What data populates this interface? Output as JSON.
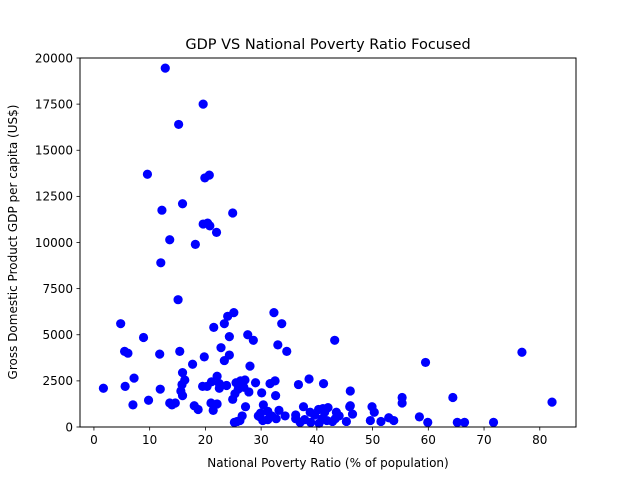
{
  "chart_data": {
    "type": "scatter",
    "title": "GDP VS National Poverty Ratio Focused",
    "xlabel": "National Poverty Ratio (% of population)",
    "ylabel": "Gross Domestic Product GDP per capita (US$)",
    "xlim": [
      -2.5,
      86.5
    ],
    "ylim": [
      0,
      20000
    ],
    "xticks": [
      0,
      10,
      20,
      30,
      40,
      50,
      60,
      70,
      80
    ],
    "yticks": [
      0,
      2500,
      5000,
      7500,
      10000,
      12500,
      15000,
      17500,
      20000
    ],
    "grid": false,
    "legend": "none",
    "marker_color": "#0000ff",
    "series": [
      {
        "points": [
          [
            12.8,
            19450
          ],
          [
            19.6,
            17500
          ],
          [
            15.2,
            16400
          ],
          [
            9.6,
            13700
          ],
          [
            20.7,
            13650
          ],
          [
            19.9,
            13500
          ],
          [
            15.9,
            12100
          ],
          [
            12.2,
            11750
          ],
          [
            24.9,
            11600
          ],
          [
            19.6,
            11000
          ],
          [
            20.4,
            11050
          ],
          [
            20.8,
            10900
          ],
          [
            13.6,
            10150
          ],
          [
            22.0,
            10550
          ],
          [
            18.2,
            9900
          ],
          [
            12.0,
            8900
          ],
          [
            15.1,
            6900
          ],
          [
            4.8,
            5600
          ],
          [
            25.1,
            6200
          ],
          [
            32.3,
            6200
          ],
          [
            24.0,
            6000
          ],
          [
            23.4,
            5600
          ],
          [
            33.7,
            5600
          ],
          [
            21.5,
            5400
          ],
          [
            27.6,
            5000
          ],
          [
            24.3,
            4900
          ],
          [
            28.6,
            4700
          ],
          [
            8.9,
            4850
          ],
          [
            43.2,
            4700
          ],
          [
            33.0,
            4450
          ],
          [
            22.8,
            4300
          ],
          [
            34.6,
            4100
          ],
          [
            76.8,
            4050
          ],
          [
            5.5,
            4100
          ],
          [
            6.1,
            4000
          ],
          [
            11.8,
            3950
          ],
          [
            15.4,
            4100
          ],
          [
            24.3,
            3900
          ],
          [
            19.8,
            3800
          ],
          [
            23.4,
            3600
          ],
          [
            59.5,
            3500
          ],
          [
            17.7,
            3400
          ],
          [
            28.0,
            3300
          ],
          [
            15.9,
            2950
          ],
          [
            22.1,
            2750
          ],
          [
            27.1,
            2550
          ],
          [
            16.3,
            2550
          ],
          [
            26.3,
            2500
          ],
          [
            38.6,
            2600
          ],
          [
            7.2,
            2650
          ],
          [
            32.5,
            2500
          ],
          [
            21.1,
            2450
          ],
          [
            25.5,
            2400
          ],
          [
            29.0,
            2400
          ],
          [
            19.5,
            2200
          ],
          [
            22.5,
            2350
          ],
          [
            36.7,
            2300
          ],
          [
            31.6,
            2350
          ],
          [
            23.8,
            2250
          ],
          [
            15.8,
            2300
          ],
          [
            41.2,
            2350
          ],
          [
            5.6,
            2200
          ],
          [
            20.3,
            2200
          ],
          [
            26.9,
            2150
          ],
          [
            1.7,
            2100
          ],
          [
            11.9,
            2050
          ],
          [
            25.9,
            2050
          ],
          [
            15.6,
            1950
          ],
          [
            22.5,
            2100
          ],
          [
            46.0,
            1950
          ],
          [
            27.8,
            1900
          ],
          [
            30.1,
            1850
          ],
          [
            25.3,
            1800
          ],
          [
            32.6,
            1700
          ],
          [
            15.9,
            1700
          ],
          [
            55.3,
            1600
          ],
          [
            64.4,
            1600
          ],
          [
            24.9,
            1500
          ],
          [
            9.8,
            1450
          ],
          [
            82.2,
            1350
          ],
          [
            13.6,
            1300
          ],
          [
            14.6,
            1300
          ],
          [
            21.0,
            1300
          ],
          [
            14.0,
            1200
          ],
          [
            7.0,
            1200
          ],
          [
            22.1,
            1250
          ],
          [
            30.4,
            1200
          ],
          [
            55.3,
            1300
          ],
          [
            46.0,
            1150
          ],
          [
            18.0,
            1150
          ],
          [
            37.6,
            1100
          ],
          [
            27.2,
            1100
          ],
          [
            18.7,
            950
          ],
          [
            42.0,
            1050
          ],
          [
            21.4,
            900
          ],
          [
            33.2,
            900
          ],
          [
            41.1,
            1000
          ],
          [
            40.3,
            950
          ],
          [
            49.9,
            1100
          ],
          [
            45.9,
            1100
          ],
          [
            31.2,
            850
          ],
          [
            29.9,
            750
          ],
          [
            38.8,
            800
          ],
          [
            41.4,
            800
          ],
          [
            43.5,
            800
          ],
          [
            50.3,
            800
          ],
          [
            46.4,
            700
          ],
          [
            36.2,
            650
          ],
          [
            29.5,
            600
          ],
          [
            31.9,
            600
          ],
          [
            34.3,
            600
          ],
          [
            26.6,
            600
          ],
          [
            39.6,
            650
          ],
          [
            58.4,
            550
          ],
          [
            44.0,
            600
          ],
          [
            29.8,
            550
          ],
          [
            32.7,
            450
          ],
          [
            37.8,
            400
          ],
          [
            31.2,
            400
          ],
          [
            30.3,
            350
          ],
          [
            40.9,
            450
          ],
          [
            26.2,
            350
          ],
          [
            52.9,
            500
          ],
          [
            41.8,
            350
          ],
          [
            25.7,
            300
          ],
          [
            36.2,
            450
          ],
          [
            38.9,
            250
          ],
          [
            43.3,
            450
          ],
          [
            53.8,
            350
          ],
          [
            49.6,
            350
          ],
          [
            42.8,
            300
          ],
          [
            45.3,
            300
          ],
          [
            51.5,
            300
          ],
          [
            37.0,
            250
          ],
          [
            59.9,
            250
          ],
          [
            65.2,
            250
          ],
          [
            71.7,
            250
          ],
          [
            66.5,
            250
          ],
          [
            25.2,
            250
          ],
          [
            40.4,
            200
          ]
        ]
      }
    ]
  }
}
